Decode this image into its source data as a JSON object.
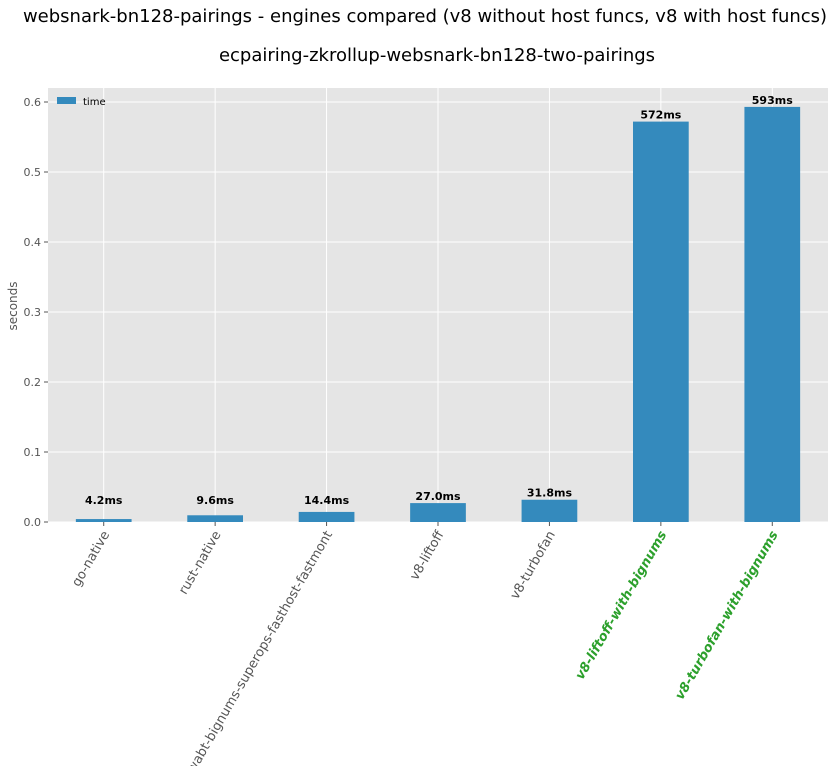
{
  "chart_data": {
    "type": "bar",
    "title": "websnark-bn128-pairings - engines compared (v8 without host funcs, v8 with host funcs)",
    "subtitle": "ecpairing-zkrollup-websnark-bn128-two-pairings",
    "ylabel": "seconds",
    "xlabel": "",
    "ylim": [
      0,
      0.62
    ],
    "yticks": [
      "0.0",
      "0.1",
      "0.2",
      "0.3",
      "0.4",
      "0.5",
      "0.6"
    ],
    "ytick_values": [
      0,
      0.1,
      0.2,
      0.3,
      0.4,
      0.5,
      0.6
    ],
    "grid": true,
    "legend": {
      "placement": "top-left",
      "entries": [
        "time"
      ]
    },
    "categories": [
      "go-native",
      "rust-native",
      "wabt-bignums-superops-fasthost-fastmont",
      "v8-liftoff",
      "v8-turbofan",
      "v8-liftoff-with-bignums",
      "v8-turbofan-with-bignums"
    ],
    "highlighted": [
      false,
      false,
      false,
      false,
      false,
      true,
      true
    ],
    "series": [
      {
        "name": "time",
        "values": [
          0.0042,
          0.0096,
          0.0144,
          0.027,
          0.0318,
          0.572,
          0.593
        ],
        "labels": [
          "4.2ms",
          "9.6ms",
          "14.4ms",
          "27.0ms",
          "31.8ms",
          "572ms",
          "593ms"
        ]
      }
    ],
    "colors": {
      "bar": "#348abd",
      "background": "#e5e5e5",
      "grid": "#ffffff",
      "highlight_label": "#2ca02c",
      "tick_label": "#555555"
    }
  }
}
